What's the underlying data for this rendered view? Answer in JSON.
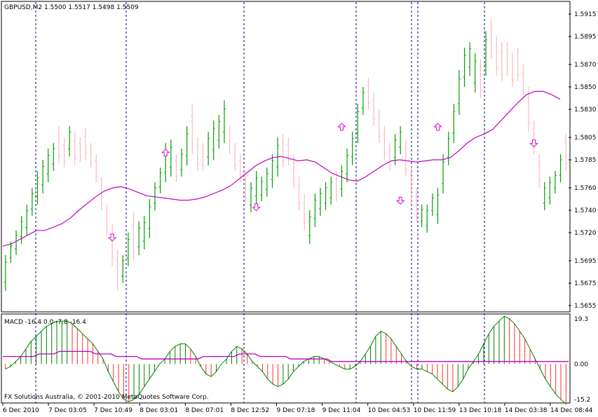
{
  "header": {
    "symbol_info": "GBPUSD,M2  1.5500 1.5517 1.5498 1.5509"
  },
  "macd_panel": {
    "label": "MACD -16.4 0.0 -7.8 -16.4",
    "axis_labels": [
      "19.3",
      "0.00",
      "-15.2"
    ],
    "copyright": "FX Solutions Australia, © 2001-2010 MetaQuotes Software Corp."
  },
  "colors": {
    "bull_bar": "#00a000",
    "bear_bar": "#ffb6c1",
    "moving_average": "#c000c0",
    "arrow": "#e000e0",
    "macd_line": "#008000",
    "macd_hist_up": "#008000",
    "macd_hist_down": "#ff3030",
    "signal_line": "#c000c0",
    "grid": "#000080"
  },
  "chart_data": [
    {
      "type": "ohlc",
      "title": "GBPUSD,M2",
      "y_ticks": [
        "1.5915",
        "1.5895",
        "1.5870",
        "1.5850",
        "1.5830",
        "1.5805",
        "1.5785",
        "1.5760",
        "1.5740",
        "1.5720",
        "1.5695",
        "1.5675",
        "1.5655"
      ],
      "ylim": [
        1.565,
        1.5925
      ],
      "x_ticks": [
        "6 Dec 2010",
        "7 Dec 03:05",
        "7 Dec 10:49",
        "8 Dec 03:01",
        "8 Dec 07:01",
        "8 Dec 12:52",
        "9 Dec 07:18",
        "9 Dec 11:04",
        "10 Dec 04:53",
        "10 Dec 11:59",
        "13 Dec 10:18",
        "14 Dec 03:38",
        "14 Dec 08:44"
      ],
      "separators": [
        "7 Dec",
        "8 Dec",
        "8 Dec",
        "9 Dec",
        "10 Dec",
        "10 Dec",
        "13 Dec",
        "14 Dec"
      ],
      "bars": [
        {
          "h": 1.57,
          "l": 1.5668,
          "up": 1
        },
        {
          "h": 1.5712,
          "l": 1.5693,
          "up": 1
        },
        {
          "h": 1.5722,
          "l": 1.57,
          "up": 1
        },
        {
          "h": 1.5735,
          "l": 1.571,
          "up": 1
        },
        {
          "h": 1.5745,
          "l": 1.5718,
          "up": 1
        },
        {
          "h": 1.576,
          "l": 1.5735,
          "up": 1
        },
        {
          "h": 1.5775,
          "l": 1.5745,
          "up": 1
        },
        {
          "h": 1.5785,
          "l": 1.5755,
          "up": 1
        },
        {
          "h": 1.5795,
          "l": 1.5765,
          "up": 1
        },
        {
          "h": 1.58,
          "l": 1.5775,
          "up": 1
        },
        {
          "h": 1.5815,
          "l": 1.5782,
          "up": 0
        },
        {
          "h": 1.5805,
          "l": 1.5778,
          "up": 0
        },
        {
          "h": 1.5815,
          "l": 1.5788,
          "up": 1
        },
        {
          "h": 1.581,
          "l": 1.578,
          "up": 0
        },
        {
          "h": 1.5805,
          "l": 1.5783,
          "up": 0
        },
        {
          "h": 1.5813,
          "l": 1.5785,
          "up": 0
        },
        {
          "h": 1.58,
          "l": 1.5778,
          "up": 0
        },
        {
          "h": 1.579,
          "l": 1.5765,
          "up": 0
        },
        {
          "h": 1.577,
          "l": 1.574,
          "up": 0
        },
        {
          "h": 1.5745,
          "l": 1.5717,
          "up": 0
        },
        {
          "h": 1.5728,
          "l": 1.569,
          "up": 0
        },
        {
          "h": 1.5705,
          "l": 1.5668,
          "up": 0
        },
        {
          "h": 1.57,
          "l": 1.5675,
          "up": 1
        },
        {
          "h": 1.572,
          "l": 1.569,
          "up": 1
        },
        {
          "h": 1.5738,
          "l": 1.5695,
          "up": 0
        },
        {
          "h": 1.573,
          "l": 1.57,
          "up": 1
        },
        {
          "h": 1.5735,
          "l": 1.5705,
          "up": 1
        },
        {
          "h": 1.575,
          "l": 1.5715,
          "up": 1
        },
        {
          "h": 1.5765,
          "l": 1.574,
          "up": 1
        },
        {
          "h": 1.5778,
          "l": 1.5755,
          "up": 1
        },
        {
          "h": 1.58,
          "l": 1.5765,
          "up": 1
        },
        {
          "h": 1.5803,
          "l": 1.577,
          "up": 1
        },
        {
          "h": 1.579,
          "l": 1.5765,
          "up": 0
        },
        {
          "h": 1.5795,
          "l": 1.577,
          "up": 1
        },
        {
          "h": 1.5815,
          "l": 1.578,
          "up": 1
        },
        {
          "h": 1.5835,
          "l": 1.579,
          "up": 0
        },
        {
          "h": 1.5805,
          "l": 1.5775,
          "up": 0
        },
        {
          "h": 1.58,
          "l": 1.5775,
          "up": 0
        },
        {
          "h": 1.581,
          "l": 1.578,
          "up": 1
        },
        {
          "h": 1.582,
          "l": 1.5785,
          "up": 1
        },
        {
          "h": 1.5825,
          "l": 1.5795,
          "up": 1
        },
        {
          "h": 1.5838,
          "l": 1.58,
          "up": 1
        },
        {
          "h": 1.5815,
          "l": 1.579,
          "up": 0
        },
        {
          "h": 1.58,
          "l": 1.5775,
          "up": 0
        },
        {
          "h": 1.579,
          "l": 1.5765,
          "up": 0
        },
        {
          "h": 1.5775,
          "l": 1.5745,
          "up": 0
        },
        {
          "h": 1.5765,
          "l": 1.5738,
          "up": 1
        },
        {
          "h": 1.5775,
          "l": 1.5745,
          "up": 1
        },
        {
          "h": 1.577,
          "l": 1.5748,
          "up": 1
        },
        {
          "h": 1.5778,
          "l": 1.5752,
          "up": 1
        },
        {
          "h": 1.579,
          "l": 1.576,
          "up": 1
        },
        {
          "h": 1.5805,
          "l": 1.577,
          "up": 1
        },
        {
          "h": 1.5808,
          "l": 1.5778,
          "up": 0
        },
        {
          "h": 1.5805,
          "l": 1.578,
          "up": 0
        },
        {
          "h": 1.579,
          "l": 1.576,
          "up": 0
        },
        {
          "h": 1.577,
          "l": 1.574,
          "up": 0
        },
        {
          "h": 1.5755,
          "l": 1.5722,
          "up": 0
        },
        {
          "h": 1.574,
          "l": 1.571,
          "up": 1
        },
        {
          "h": 1.5755,
          "l": 1.5725,
          "up": 1
        },
        {
          "h": 1.576,
          "l": 1.5735,
          "up": 1
        },
        {
          "h": 1.5765,
          "l": 1.574,
          "up": 1
        },
        {
          "h": 1.577,
          "l": 1.5745,
          "up": 1
        },
        {
          "h": 1.5775,
          "l": 1.5748,
          "up": 0
        },
        {
          "h": 1.578,
          "l": 1.5752,
          "up": 1
        },
        {
          "h": 1.5795,
          "l": 1.5765,
          "up": 1
        },
        {
          "h": 1.581,
          "l": 1.578,
          "up": 1
        },
        {
          "h": 1.5835,
          "l": 1.58,
          "up": 1
        },
        {
          "h": 1.585,
          "l": 1.5825,
          "up": 1
        },
        {
          "h": 1.5858,
          "l": 1.583,
          "up": 0
        },
        {
          "h": 1.5845,
          "l": 1.5815,
          "up": 0
        },
        {
          "h": 1.583,
          "l": 1.58,
          "up": 0
        },
        {
          "h": 1.5815,
          "l": 1.5785,
          "up": 0
        },
        {
          "h": 1.58,
          "l": 1.5775,
          "up": 0
        },
        {
          "h": 1.5808,
          "l": 1.578,
          "up": 1
        },
        {
          "h": 1.5815,
          "l": 1.579,
          "up": 1
        },
        {
          "h": 1.5803,
          "l": 1.577,
          "up": 0
        },
        {
          "h": 1.578,
          "l": 1.5745,
          "up": 0
        },
        {
          "h": 1.576,
          "l": 1.573,
          "up": 0
        },
        {
          "h": 1.5745,
          "l": 1.5725,
          "up": 1
        },
        {
          "h": 1.5745,
          "l": 1.572,
          "up": 1
        },
        {
          "h": 1.5755,
          "l": 1.5735,
          "up": 1
        },
        {
          "h": 1.576,
          "l": 1.5728,
          "up": 1
        },
        {
          "h": 1.579,
          "l": 1.5755,
          "up": 1
        },
        {
          "h": 1.581,
          "l": 1.578,
          "up": 1
        },
        {
          "h": 1.5835,
          "l": 1.58,
          "up": 1
        },
        {
          "h": 1.5865,
          "l": 1.5825,
          "up": 1
        },
        {
          "h": 1.5885,
          "l": 1.585,
          "up": 1
        },
        {
          "h": 1.589,
          "l": 1.586,
          "up": 1
        },
        {
          "h": 1.588,
          "l": 1.5845,
          "up": 1
        },
        {
          "h": 1.5875,
          "l": 1.584,
          "up": 0
        },
        {
          "h": 1.59,
          "l": 1.586,
          "up": 1
        },
        {
          "h": 1.591,
          "l": 1.5875,
          "up": 0
        },
        {
          "h": 1.5895,
          "l": 1.586,
          "up": 0
        },
        {
          "h": 1.589,
          "l": 1.5855,
          "up": 0
        },
        {
          "h": 1.589,
          "l": 1.586,
          "up": 0
        },
        {
          "h": 1.588,
          "l": 1.585,
          "up": 0
        },
        {
          "h": 1.5885,
          "l": 1.5855,
          "up": 0
        },
        {
          "h": 1.587,
          "l": 1.584,
          "up": 0
        },
        {
          "h": 1.585,
          "l": 1.581,
          "up": 0
        },
        {
          "h": 1.582,
          "l": 1.579,
          "up": 0
        },
        {
          "h": 1.579,
          "l": 1.576,
          "up": 0
        },
        {
          "h": 1.5765,
          "l": 1.574,
          "up": 1
        },
        {
          "h": 1.577,
          "l": 1.5745,
          "up": 1
        },
        {
          "h": 1.5775,
          "l": 1.5755,
          "up": 1
        },
        {
          "h": 1.579,
          "l": 1.5765,
          "up": 1
        },
        {
          "h": 1.5808,
          "l": 1.5775,
          "up": 0
        }
      ],
      "moving_average": [
        1.5708,
        1.571,
        1.5714,
        1.5718,
        1.5722,
        1.5722,
        1.5725,
        1.5728,
        1.5733,
        1.574,
        1.5746,
        1.5752,
        1.5757,
        1.576,
        1.5761,
        1.5759,
        1.5756,
        1.5753,
        1.5752,
        1.5751,
        1.575,
        1.5749,
        1.5749,
        1.575,
        1.5752,
        1.5755,
        1.5758,
        1.5762,
        1.5768,
        1.5774,
        1.578,
        1.5784,
        1.5787,
        1.5788,
        1.5786,
        1.5784,
        1.5785,
        1.5783,
        1.5778,
        1.5773,
        1.577,
        1.5767,
        1.5766,
        1.577,
        1.5775,
        1.578,
        1.5784,
        1.5785,
        1.5784,
        1.5783,
        1.5784,
        1.5785,
        1.5785,
        1.5787,
        1.5793,
        1.58,
        1.5805,
        1.5808,
        1.5812,
        1.582,
        1.5828,
        1.5836,
        1.5843,
        1.5846,
        1.5846,
        1.5843,
        1.5839
      ],
      "arrows": [
        {
          "i": 20,
          "dir": "down",
          "price": 1.5715
        },
        {
          "i": 30,
          "dir": "up",
          "price": 1.5792
        },
        {
          "i": 47,
          "dir": "down",
          "price": 1.5742
        },
        {
          "i": 63,
          "dir": "up",
          "price": 1.5815
        },
        {
          "i": 74,
          "dir": "down",
          "price": 1.5748
        },
        {
          "i": 81,
          "dir": "up",
          "price": 1.5815
        },
        {
          "i": 99,
          "dir": "down",
          "price": 1.5799
        }
      ]
    },
    {
      "type": "macd",
      "title": "MACD",
      "values_text": "-16.4 0.0 -7.8 -16.4",
      "ylim": [
        -15.2,
        19.3
      ],
      "y_ticks": [
        "19.3",
        "0.00",
        "-15.2"
      ],
      "histogram": [
        -2,
        -1,
        1,
        3,
        6,
        9,
        11,
        13,
        15,
        16,
        17,
        17,
        17,
        16,
        14,
        12,
        10,
        8,
        5,
        2,
        -3,
        -7,
        -11,
        -14,
        -15,
        -14,
        -12,
        -9,
        -6,
        -3,
        0,
        2,
        5,
        7,
        8,
        8,
        6,
        3,
        -1,
        -4,
        -5,
        -3,
        0,
        2,
        5,
        7,
        6,
        4,
        1,
        -1,
        -3,
        -6,
        -8,
        -9,
        -8,
        -6,
        -3,
        -1,
        1,
        2,
        3,
        3,
        2,
        1,
        0,
        -1,
        -2,
        -2,
        -1,
        1,
        4,
        7,
        11,
        13,
        12,
        10,
        7,
        4,
        1,
        -1,
        -2,
        -2,
        -3,
        -4,
        -6,
        -8,
        -10,
        -11,
        -9,
        -6,
        -2,
        1,
        4,
        8,
        12,
        15,
        17,
        19,
        18,
        16,
        13,
        10,
        6,
        2,
        -2,
        -6,
        -9,
        -12,
        -14,
        -16
      ],
      "signal": [
        3,
        3,
        3,
        3,
        3,
        3,
        3,
        4,
        4,
        4,
        4,
        5,
        5,
        5,
        5,
        5,
        5,
        5,
        4,
        4,
        4,
        4,
        3,
        3,
        3,
        3,
        3,
        2,
        2,
        2,
        2,
        2,
        2,
        2,
        2,
        2,
        2,
        2,
        2,
        3,
        3,
        3,
        3,
        3,
        3,
        3,
        4,
        4,
        4,
        4,
        3,
        3,
        3,
        3,
        3,
        3,
        2,
        2,
        2,
        2,
        2,
        2,
        2,
        2,
        1,
        1,
        1,
        1,
        1,
        1,
        1,
        1,
        1,
        1,
        1,
        1,
        1,
        1,
        1,
        1,
        1,
        1,
        1,
        1,
        1,
        1,
        1,
        1,
        1,
        1,
        1,
        1,
        1,
        1,
        1,
        1,
        1,
        1,
        1,
        1,
        1,
        1,
        1,
        1,
        1,
        1,
        1,
        1,
        1,
        1,
        1
      ]
    }
  ]
}
